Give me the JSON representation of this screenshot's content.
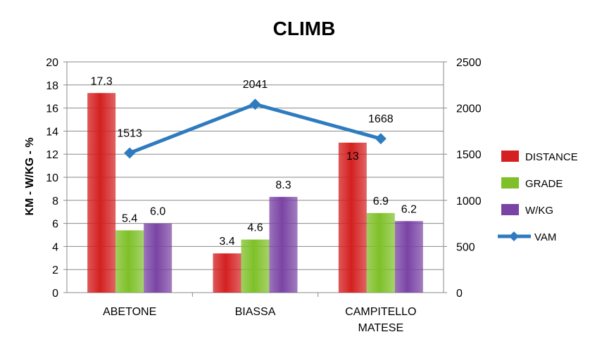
{
  "chart_data": {
    "type": "bar",
    "title": "CLIMB",
    "ylabel": "KM - W/KG - %",
    "y2label": "",
    "categories": [
      "ABETONE",
      "BIASSA",
      "CAMPITELLO MATESE"
    ],
    "category_lines": [
      [
        "ABETONE"
      ],
      [
        "BIASSA"
      ],
      [
        "CAMPITELLO",
        "MATESE"
      ]
    ],
    "ylim": [
      0,
      20
    ],
    "y2lim": [
      0,
      2500
    ],
    "yticks": [
      "0",
      "2",
      "4",
      "6",
      "8",
      "10",
      "12",
      "14",
      "16",
      "18",
      "20"
    ],
    "y2ticks": [
      "0",
      "500",
      "1000",
      "1500",
      "2000",
      "2500"
    ],
    "grid": true,
    "legend_position": "right",
    "series": [
      {
        "name": "DISTANCE",
        "kind": "bar",
        "axis": "left",
        "color": "#d42020",
        "values": [
          17.3,
          3.4,
          13
        ],
        "labels": [
          "17.3",
          "3.4",
          "13"
        ]
      },
      {
        "name": "GRADE",
        "kind": "bar",
        "axis": "left",
        "color": "#7fc029",
        "values": [
          5.4,
          4.6,
          6.9
        ],
        "labels": [
          "5.4",
          "4.6",
          "6.9"
        ]
      },
      {
        "name": "W/KG",
        "kind": "bar",
        "axis": "left",
        "color": "#7a44a4",
        "values": [
          6.0,
          8.3,
          6.2
        ],
        "labels": [
          "6.0",
          "8.3",
          "6.2"
        ]
      },
      {
        "name": "VAM",
        "kind": "line",
        "axis": "right",
        "color": "#2f7bbf",
        "values": [
          1513,
          2041,
          1668
        ],
        "labels": [
          "1513",
          "2041",
          "1668"
        ]
      }
    ]
  }
}
